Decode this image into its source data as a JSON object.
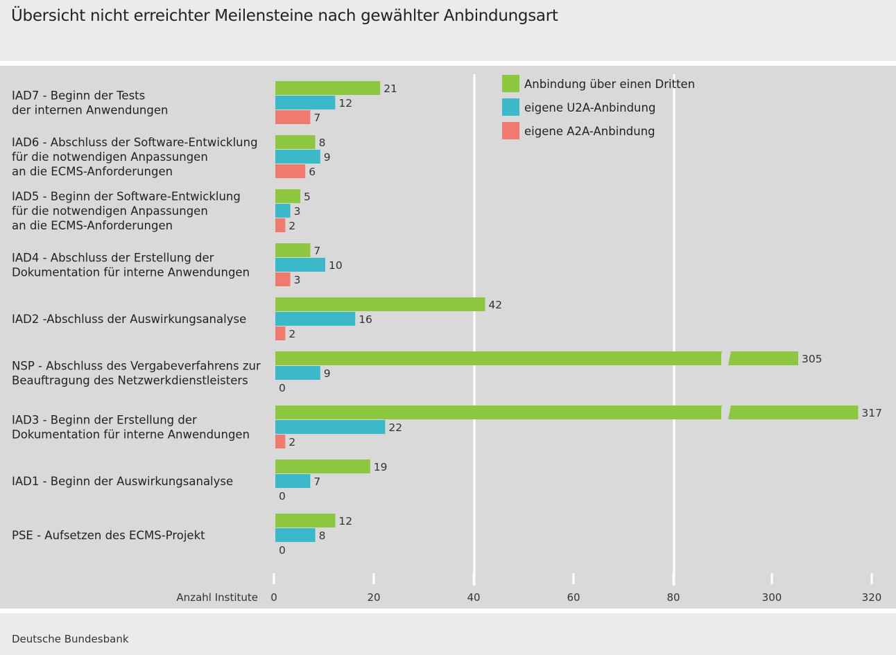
{
  "title": "Übersicht nicht erreichter Meilensteine nach gewählter Anbindungsart",
  "source": "Deutsche Bundesbank",
  "chart_data": {
    "type": "bar",
    "orientation": "horizontal",
    "xlabel": "Anzahl Institute",
    "x_ticks": [
      0,
      20,
      40,
      60,
      80,
      300,
      320
    ],
    "axis_break": "between 80 and 300",
    "legend_position": "top-right",
    "categories": [
      [
        "IAD7 - Beginn der Tests",
        "der internen Anwendungen"
      ],
      [
        "IAD6 - Abschluss der Software-Entwicklung",
        "für die notwendigen Anpassungen",
        "an die ECMS-Anforderungen"
      ],
      [
        "IAD5 - Beginn der Software-Entwicklung",
        "für die notwendigen Anpassungen",
        "an die ECMS-Anforderungen"
      ],
      [
        "IAD4 - Abschluss der Erstellung der",
        "Dokumentation für interne Anwendungen"
      ],
      [
        "IAD2 -Abschluss der Auswirkungsanalyse"
      ],
      [
        "NSP - Abschluss des Vergabeverfahrens zur",
        "Beauftragung des Netzwerkdienstleisters"
      ],
      [
        "IAD3 - Beginn der Erstellung der",
        "Dokumentation für interne Anwendungen"
      ],
      [
        "IAD1 - Beginn der Auswirkungsanalyse"
      ],
      [
        "PSE - Aufsetzen des ECMS-Projekt"
      ]
    ],
    "series": [
      {
        "name": "Anbindung über einen Dritten",
        "color": "#8dc63f",
        "values": [
          21,
          8,
          5,
          7,
          42,
          305,
          317,
          19,
          12
        ]
      },
      {
        "name": "eigene U2A-Anbindung",
        "color": "#3bb9c9",
        "values": [
          12,
          9,
          3,
          10,
          16,
          9,
          22,
          7,
          8
        ]
      },
      {
        "name": "eigene A2A-Anbindung",
        "color": "#f07a6e",
        "values": [
          7,
          6,
          2,
          3,
          2,
          0,
          2,
          0,
          0
        ]
      }
    ],
    "grid": "white vertical lines at 40 and 80"
  }
}
